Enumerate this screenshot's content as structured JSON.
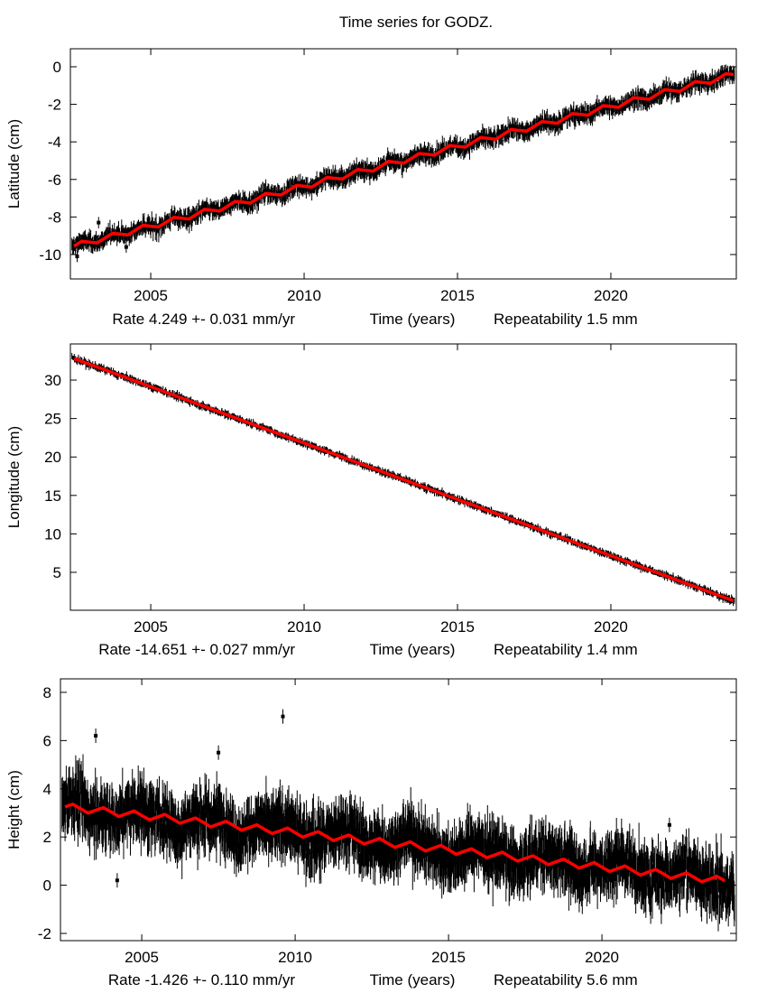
{
  "title": "Time series for GODZ.",
  "colors": {
    "observations": "#000000",
    "fit": "#ff0000",
    "axes": "#000000"
  },
  "chart_data": [
    {
      "type": "line",
      "ylabel": "Latitude (cm)",
      "xlabel": "Time (years)",
      "rate_label": "Rate 4.249 +- 0.031 mm/yr",
      "repeat_label": "Repeatability 1.5 mm",
      "xlim": [
        2002.38,
        2024.09
      ],
      "ylim": [
        -11.3,
        0.96
      ],
      "xticks": [
        2005,
        2010,
        2015,
        2020
      ],
      "yticks": [
        0,
        -2,
        -4,
        -6,
        -8,
        -10
      ],
      "grid": false,
      "fit_start": 2002.5,
      "fit_step": 0.25,
      "fit": [
        -9.55,
        -9.29,
        -9.34,
        -9.38,
        -9.13,
        -8.87,
        -8.91,
        -8.96,
        -8.7,
        -8.44,
        -8.49,
        -8.53,
        -8.28,
        -8.02,
        -8.06,
        -8.11,
        -7.85,
        -7.59,
        -7.64,
        -7.68,
        -7.43,
        -7.17,
        -7.21,
        -7.26,
        -7.0,
        -6.74,
        -6.79,
        -6.83,
        -6.58,
        -6.32,
        -6.36,
        -6.41,
        -6.15,
        -5.89,
        -5.94,
        -5.98,
        -5.73,
        -5.47,
        -5.51,
        -5.56,
        -5.3,
        -5.04,
        -5.09,
        -5.13,
        -4.88,
        -4.62,
        -4.66,
        -4.71,
        -4.45,
        -4.19,
        -4.24,
        -4.28,
        -4.03,
        -3.77,
        -3.81,
        -3.86,
        -3.6,
        -3.34,
        -3.39,
        -3.43,
        -3.18,
        -2.92,
        -2.96,
        -3.01,
        -2.75,
        -2.49,
        -2.54,
        -2.58,
        -2.33,
        -2.07,
        -2.11,
        -2.16,
        -1.9,
        -1.64,
        -1.69,
        -1.73,
        -1.48,
        -1.22,
        -1.26,
        -1.31,
        -1.05,
        -0.79,
        -0.84,
        -0.88,
        -0.63,
        -0.37,
        -0.41
      ],
      "outliers": [
        {
          "x": 2003.3,
          "y": -8.3
        },
        {
          "x": 2004.2,
          "y": -9.6
        },
        {
          "x": 2002.6,
          "y": -10.1
        }
      ]
    },
    {
      "type": "line",
      "ylabel": "Longitude (cm)",
      "xlabel": "Time (years)",
      "rate_label": "Rate -14.651 +- 0.027 mm/yr",
      "repeat_label": "Repeatability 1.4 mm",
      "xlim": [
        2002.38,
        2024.09
      ],
      "ylim": [
        0.07,
        34.7
      ],
      "xticks": [
        2005,
        2010,
        2015,
        2020
      ],
      "yticks": [
        30,
        25,
        20,
        15,
        10,
        5
      ],
      "grid": false,
      "fit_start": 2002.5,
      "fit_step": 2.15,
      "fit": [
        32.8,
        29.65,
        26.5,
        23.35,
        20.2,
        17.05,
        13.9,
        10.75,
        7.6,
        4.45,
        1.3
      ],
      "outliers": []
    },
    {
      "type": "line",
      "ylabel": "Height (cm)",
      "xlabel": "Time (years)",
      "rate_label": "Rate -1.426 +- 0.110 mm/yr",
      "repeat_label": "Repeatability 5.6 mm",
      "xlim": [
        2002.35,
        2024.38
      ],
      "ylim": [
        -2.3,
        8.56
      ],
      "xticks": [
        2005,
        2010,
        2015,
        2020
      ],
      "yticks": [
        8,
        6,
        4,
        2,
        0,
        -2
      ],
      "grid": false,
      "fit_start": 2002.5,
      "fit_step": 0.25,
      "fit": [
        3.25,
        3.36,
        3.18,
        2.99,
        3.11,
        3.22,
        3.04,
        2.85,
        2.96,
        3.08,
        2.89,
        2.71,
        2.82,
        2.94,
        2.75,
        2.57,
        2.68,
        2.79,
        2.61,
        2.42,
        2.54,
        2.65,
        2.47,
        2.28,
        2.39,
        2.51,
        2.32,
        2.14,
        2.25,
        2.37,
        2.18,
        1.99,
        2.11,
        2.22,
        2.04,
        1.85,
        1.97,
        2.08,
        1.89,
        1.71,
        1.82,
        1.94,
        1.75,
        1.57,
        1.68,
        1.8,
        1.61,
        1.42,
        1.54,
        1.65,
        1.47,
        1.28,
        1.4,
        1.51,
        1.32,
        1.14,
        1.25,
        1.37,
        1.18,
        1.0,
        1.11,
        1.22,
        1.04,
        0.85,
        0.97,
        1.08,
        0.9,
        0.71,
        0.82,
        0.94,
        0.75,
        0.57,
        0.68,
        0.8,
        0.61,
        0.42,
        0.54,
        0.65,
        0.47,
        0.28,
        0.4,
        0.51,
        0.33,
        0.14,
        0.25,
        0.37,
        0.18
      ],
      "outliers": [
        {
          "x": 2009.6,
          "y": 7.0
        },
        {
          "x": 2007.5,
          "y": 5.5
        },
        {
          "x": 2003.5,
          "y": 6.2
        },
        {
          "x": 2022.2,
          "y": 2.5
        },
        {
          "x": 2004.2,
          "y": 0.2
        }
      ]
    }
  ]
}
